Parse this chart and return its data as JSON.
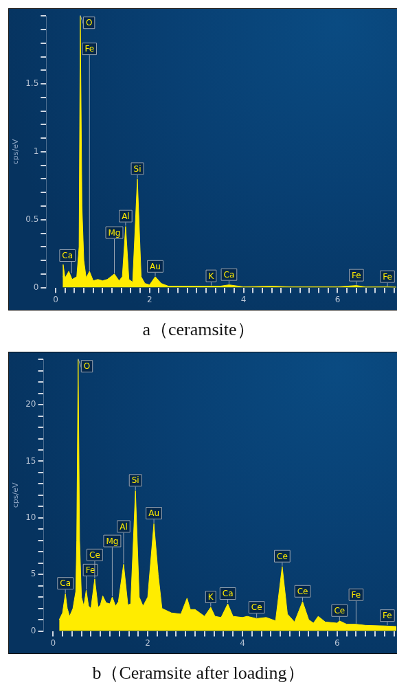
{
  "chart_data": [
    {
      "type": "area",
      "title": "a（ceramsite）",
      "ylabel": "cps/eV",
      "color": "#ffec00",
      "grid": false,
      "x": [
        0.15,
        0.16,
        0.2,
        0.28,
        0.35,
        0.45,
        0.5,
        0.525,
        0.56,
        0.6,
        0.65,
        0.72,
        0.8,
        0.9,
        1.0,
        1.1,
        1.25,
        1.35,
        1.42,
        1.49,
        1.56,
        1.64,
        1.74,
        1.82,
        1.9,
        2.0,
        2.12,
        2.25,
        2.4,
        3.0,
        3.31,
        3.5,
        3.69,
        4.0,
        4.6,
        5.0,
        6.0,
        6.4,
        6.6,
        7.06,
        7.25
      ],
      "values": [
        0.08,
        0.17,
        0.07,
        0.12,
        0.06,
        0.08,
        0.3,
        2.0,
        0.6,
        0.2,
        0.07,
        0.12,
        0.05,
        0.06,
        0.05,
        0.06,
        0.1,
        0.05,
        0.08,
        0.45,
        0.06,
        0.04,
        0.8,
        0.08,
        0.03,
        0.02,
        0.08,
        0.03,
        0.01,
        0.01,
        0.01,
        0.01,
        0.02,
        0.005,
        0.01,
        0.005,
        0.005,
        0.015,
        0.004,
        0.005,
        0.003
      ],
      "xlim": [
        -0.2,
        7.25
      ],
      "xticks": [
        0,
        {
          "value": 0.2,
          "label": null
        },
        {
          "value": 0.4,
          "label": null
        },
        {
          "value": 0.6,
          "label": null
        },
        {
          "value": 0.8,
          "label": null
        },
        {
          "value": 1,
          "label": null
        },
        {
          "value": 1.2,
          "label": null
        },
        {
          "value": 1.4,
          "label": null
        },
        {
          "value": 1.6,
          "label": null
        },
        {
          "value": 1.8,
          "label": null
        },
        2,
        {
          "value": 2.2,
          "label": null
        },
        {
          "value": 2.4,
          "label": null
        },
        {
          "value": 2.6,
          "label": null
        },
        {
          "value": 2.8,
          "label": null
        },
        {
          "value": 3,
          "label": null
        },
        {
          "value": 3.2,
          "label": null
        },
        {
          "value": 3.4,
          "label": null
        },
        {
          "value": 3.6,
          "label": null
        },
        {
          "value": 3.8,
          "label": null
        },
        4,
        {
          "value": 4.2,
          "label": null
        },
        {
          "value": 4.4,
          "label": null
        },
        {
          "value": 4.6,
          "label": null
        },
        {
          "value": 4.8,
          "label": null
        },
        {
          "value": 5,
          "label": null
        },
        {
          "value": 5.2,
          "label": null
        },
        {
          "value": 5.4,
          "label": null
        },
        {
          "value": 5.6,
          "label": null
        },
        {
          "value": 5.8,
          "label": null
        },
        6,
        {
          "value": 6.2,
          "label": null
        },
        {
          "value": 6.4,
          "label": null
        },
        {
          "value": 6.6,
          "label": null
        },
        {
          "value": 6.8,
          "label": null
        },
        {
          "value": 7,
          "label": null
        },
        {
          "value": 7.2,
          "label": null
        }
      ],
      "ylim": [
        0,
        2
      ],
      "yticks": [
        0,
        {
          "value": 0.1,
          "label": null
        },
        {
          "value": 0.2,
          "label": null
        },
        {
          "value": 0.3,
          "label": null
        },
        {
          "value": 0.4,
          "label": null
        },
        0.5,
        {
          "value": 0.6,
          "label": null
        },
        {
          "value": 0.7,
          "label": null
        },
        {
          "value": 0.8,
          "label": null
        },
        {
          "value": 0.9,
          "label": null
        },
        1,
        {
          "value": 1.1,
          "label": null
        },
        {
          "value": 1.2,
          "label": null
        },
        {
          "value": 1.3,
          "label": null
        },
        {
          "value": 1.4,
          "label": null
        },
        1.5,
        {
          "value": 1.6,
          "label": null
        },
        {
          "value": 1.7,
          "label": null
        },
        {
          "value": 1.8,
          "label": null
        },
        {
          "value": 1.9,
          "label": null
        },
        {
          "value": 2,
          "label": null
        }
      ],
      "annotations": [
        {
          "text": "Ca",
          "x": 0.34,
          "y": 0.1
        },
        {
          "text": "O",
          "x": 0.525,
          "y": 2.0
        },
        {
          "text": "Fe",
          "x": 0.72,
          "y": 0.12
        },
        {
          "text": "Mg",
          "x": 1.25,
          "y": 0.1
        },
        {
          "text": "Al",
          "x": 1.49,
          "y": 0.45
        },
        {
          "text": "Si",
          "x": 1.74,
          "y": 0.8
        },
        {
          "text": "Au",
          "x": 2.12,
          "y": 0.08
        },
        {
          "text": "K",
          "x": 3.31,
          "y": 0.01
        },
        {
          "text": "Ca",
          "x": 3.69,
          "y": 0.02
        },
        {
          "text": "Fe",
          "x": 6.4,
          "y": 0.015
        },
        {
          "text": "Fe",
          "x": 7.06,
          "y": 0.005
        }
      ]
    },
    {
      "type": "area",
      "title": "b（Ceramsite after loading）",
      "ylabel": "cps/eV",
      "color": "#ffec00",
      "grid": false,
      "x": [
        0.13,
        0.2,
        0.26,
        0.3,
        0.35,
        0.42,
        0.48,
        0.5,
        0.53,
        0.56,
        0.6,
        0.65,
        0.7,
        0.75,
        0.8,
        0.88,
        0.95,
        1.0,
        1.05,
        1.12,
        1.2,
        1.25,
        1.32,
        1.38,
        1.49,
        1.58,
        1.64,
        1.74,
        1.82,
        1.9,
        2.0,
        2.13,
        2.22,
        2.3,
        2.5,
        2.7,
        2.83,
        2.9,
        3.0,
        3.1,
        3.2,
        3.33,
        3.42,
        3.55,
        3.69,
        3.8,
        4.0,
        4.1,
        4.3,
        4.5,
        4.7,
        4.84,
        4.95,
        5.1,
        5.27,
        5.4,
        5.5,
        5.6,
        5.75,
        6.0,
        6.05,
        6.2,
        6.4,
        6.6,
        7.0,
        7.25
      ],
      "values": [
        1.0,
        1.6,
        3.3,
        2.0,
        1.3,
        2.0,
        3.5,
        8,
        24,
        8,
        3.0,
        2.2,
        3.6,
        2.2,
        2.0,
        4.6,
        2.1,
        2.3,
        3.1,
        2.5,
        2.4,
        3.0,
        2.2,
        2.6,
        5.9,
        2.3,
        2.4,
        12.4,
        3.0,
        2.2,
        3.0,
        9.5,
        5,
        2.0,
        1.6,
        1.5,
        2.9,
        1.9,
        1.9,
        1.6,
        1.3,
        2.1,
        1.3,
        1.2,
        2.4,
        1.3,
        1.2,
        1.3,
        1.1,
        1.2,
        0.9,
        5.7,
        1.5,
        0.8,
        2.6,
        1.0,
        0.7,
        1.3,
        0.8,
        0.7,
        0.9,
        0.6,
        0.6,
        0.5,
        0.45,
        0.4
      ],
      "xlim": [
        -0.2,
        7.25
      ],
      "xticks": [
        0,
        {
          "value": 0.2,
          "label": null
        },
        {
          "value": 0.4,
          "label": null
        },
        {
          "value": 0.6,
          "label": null
        },
        {
          "value": 0.8,
          "label": null
        },
        {
          "value": 1,
          "label": null
        },
        {
          "value": 1.2,
          "label": null
        },
        {
          "value": 1.4,
          "label": null
        },
        {
          "value": 1.6,
          "label": null
        },
        {
          "value": 1.8,
          "label": null
        },
        2,
        {
          "value": 2.2,
          "label": null
        },
        {
          "value": 2.4,
          "label": null
        },
        {
          "value": 2.6,
          "label": null
        },
        {
          "value": 2.8,
          "label": null
        },
        {
          "value": 3,
          "label": null
        },
        {
          "value": 3.2,
          "label": null
        },
        {
          "value": 3.4,
          "label": null
        },
        {
          "value": 3.6,
          "label": null
        },
        {
          "value": 3.8,
          "label": null
        },
        4,
        {
          "value": 4.2,
          "label": null
        },
        {
          "value": 4.4,
          "label": null
        },
        {
          "value": 4.6,
          "label": null
        },
        {
          "value": 4.8,
          "label": null
        },
        {
          "value": 5,
          "label": null
        },
        {
          "value": 5.2,
          "label": null
        },
        {
          "value": 5.4,
          "label": null
        },
        {
          "value": 5.6,
          "label": null
        },
        {
          "value": 5.8,
          "label": null
        },
        6,
        {
          "value": 6.2,
          "label": null
        },
        {
          "value": 6.4,
          "label": null
        },
        {
          "value": 6.6,
          "label": null
        },
        {
          "value": 6.8,
          "label": null
        },
        {
          "value": 7,
          "label": null
        },
        {
          "value": 7.2,
          "label": null
        }
      ],
      "ylim": [
        0,
        24
      ],
      "yticks": [
        0,
        {
          "value": 1,
          "label": null
        },
        {
          "value": 2,
          "label": null
        },
        {
          "value": 3,
          "label": null
        },
        {
          "value": 4,
          "label": null
        },
        5,
        {
          "value": 6,
          "label": null
        },
        {
          "value": 7,
          "label": null
        },
        {
          "value": 8,
          "label": null
        },
        {
          "value": 9,
          "label": null
        },
        10,
        {
          "value": 11,
          "label": null
        },
        {
          "value": 12,
          "label": null
        },
        {
          "value": 13,
          "label": null
        },
        {
          "value": 14,
          "label": null
        },
        15,
        {
          "value": 16,
          "label": null
        },
        {
          "value": 17,
          "label": null
        },
        {
          "value": 18,
          "label": null
        },
        {
          "value": 19,
          "label": null
        },
        20,
        {
          "value": 21,
          "label": null
        },
        {
          "value": 22,
          "label": null
        },
        {
          "value": 23,
          "label": null
        },
        {
          "value": 24,
          "label": null
        }
      ],
      "annotations": [
        {
          "text": "Ca",
          "x": 0.26,
          "y": 3.3
        },
        {
          "text": "O",
          "x": 0.53,
          "y": 24
        },
        {
          "text": "Fe",
          "x": 0.7,
          "y": 3.6
        },
        {
          "text": "Ce",
          "x": 0.88,
          "y": 4.6
        },
        {
          "text": "Mg",
          "x": 1.25,
          "y": 3.0
        },
        {
          "text": "Al",
          "x": 1.49,
          "y": 5.9
        },
        {
          "text": "Si",
          "x": 1.74,
          "y": 12.4
        },
        {
          "text": "Au",
          "x": 2.13,
          "y": 9.5
        },
        {
          "text": "K",
          "x": 3.33,
          "y": 2.1
        },
        {
          "text": "Ca",
          "x": 3.69,
          "y": 2.4
        },
        {
          "text": "Ce",
          "x": 4.3,
          "y": 1.1
        },
        {
          "text": "Ce",
          "x": 4.84,
          "y": 5.7
        },
        {
          "text": "Ce",
          "x": 5.27,
          "y": 2.6
        },
        {
          "text": "Ce",
          "x": 6.05,
          "y": 0.9
        },
        {
          "text": "Fe",
          "x": 6.4,
          "y": 0.6
        },
        {
          "text": "Fe",
          "x": 7.06,
          "y": 0.45
        }
      ]
    }
  ]
}
